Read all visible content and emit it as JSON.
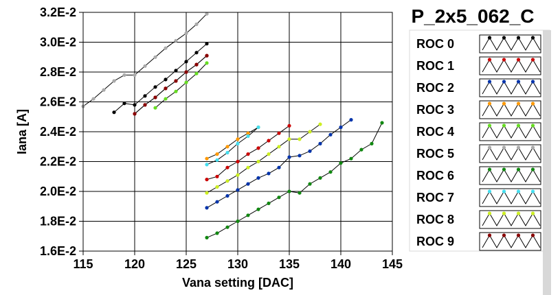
{
  "chart_data": {
    "type": "line",
    "title": "P_2x5_062_C",
    "xlabel": "Vana setting [DAC]",
    "ylabel": "Iana [A]",
    "xlim": [
      115,
      145
    ],
    "ylim": [
      0.016,
      0.032
    ],
    "xticks": [
      115,
      120,
      125,
      130,
      135,
      140,
      145
    ],
    "xtick_labels": [
      "115",
      "120",
      "125",
      "130",
      "135",
      "140",
      "145"
    ],
    "yticks": [
      0.016,
      0.018,
      0.02,
      0.022,
      0.024,
      0.026,
      0.028,
      0.03,
      0.032
    ],
    "ytick_labels": [
      "1.6E-2",
      "1.8E-2",
      "2.0E-2",
      "2.2E-2",
      "2.4E-2",
      "2.6E-2",
      "2.8E-2",
      "3.0E-2",
      "3.2E-2"
    ],
    "grid": true,
    "legend_position": "right",
    "series": [
      {
        "name": "ROC 0",
        "color": "#000000",
        "x": [
          118,
          119,
          120,
          121,
          122,
          123,
          124,
          125,
          126,
          127
        ],
        "y": [
          0.0253,
          0.0259,
          0.0258,
          0.0264,
          0.027,
          0.0275,
          0.0281,
          0.0287,
          0.0293,
          0.0299
        ]
      },
      {
        "name": "ROC 1",
        "color": "#cc0000",
        "x": [
          120,
          121,
          122,
          123,
          124,
          125,
          126,
          127
        ],
        "y": [
          0.0252,
          0.0258,
          0.0263,
          0.0269,
          0.0274,
          0.028,
          0.0285,
          0.0291
        ]
      },
      {
        "name": "ROC 1",
        "color": "#cc0000",
        "x": [
          127,
          128,
          129,
          130,
          131,
          132,
          133,
          134,
          135
        ],
        "y": [
          0.0208,
          0.021,
          0.0216,
          0.022,
          0.0225,
          0.0229,
          0.0234,
          0.0239,
          0.0244
        ]
      },
      {
        "name": "ROC 2",
        "color": "#0033aa",
        "x": [
          127,
          128,
          129,
          130,
          131,
          132,
          133,
          134,
          135,
          136,
          137,
          138,
          139,
          140,
          141
        ],
        "y": [
          0.0189,
          0.0193,
          0.0197,
          0.0201,
          0.0205,
          0.0209,
          0.0212,
          0.0216,
          0.0223,
          0.0224,
          0.0227,
          0.0232,
          0.0238,
          0.0243,
          0.0248
        ]
      },
      {
        "name": "ROC 3",
        "color": "#ff9900",
        "x": [
          127,
          128,
          129,
          130,
          131,
          132
        ],
        "y": [
          0.0222,
          0.0225,
          0.023,
          0.0235,
          0.0239,
          0.0243
        ]
      },
      {
        "name": "ROC 4",
        "color": "#66dd22",
        "x": [
          122,
          123,
          124,
          125,
          126,
          127
        ],
        "y": [
          0.0256,
          0.0262,
          0.0267,
          0.0273,
          0.0279,
          0.0286
        ]
      },
      {
        "name": "ROC 5",
        "color": "#aaaaaa",
        "x": [
          115,
          116,
          117,
          118,
          119,
          120,
          121,
          122,
          123,
          124,
          125,
          126,
          127
        ],
        "y": [
          0.0257,
          0.0262,
          0.0268,
          0.0274,
          0.0278,
          0.0278,
          0.0284,
          0.029,
          0.0296,
          0.0301,
          0.0306,
          0.0312,
          0.0319
        ]
      },
      {
        "name": "ROC 6",
        "color": "#118811",
        "x": [
          127,
          128,
          129,
          130,
          131,
          132,
          133,
          134,
          135,
          136,
          137,
          138,
          139,
          140,
          141,
          142,
          143,
          144
        ],
        "y": [
          0.0169,
          0.0172,
          0.0176,
          0.018,
          0.0184,
          0.0188,
          0.0192,
          0.0196,
          0.02,
          0.0199,
          0.0205,
          0.0209,
          0.0213,
          0.0219,
          0.0222,
          0.0228,
          0.0232,
          0.0246
        ]
      },
      {
        "name": "ROC 7",
        "color": "#44ddee",
        "x": [
          127,
          128,
          129,
          130,
          131,
          132
        ],
        "y": [
          0.0218,
          0.0221,
          0.0226,
          0.0232,
          0.0237,
          0.0243
        ]
      },
      {
        "name": "ROC 8",
        "color": "#ccee22",
        "x": [
          127,
          128,
          129,
          130,
          131,
          132,
          133,
          134,
          135,
          136,
          137,
          138
        ],
        "y": [
          0.0199,
          0.0203,
          0.0207,
          0.0211,
          0.0216,
          0.022,
          0.0225,
          0.023,
          0.0235,
          0.0235,
          0.024,
          0.0245
        ]
      },
      {
        "name": "ROC 9",
        "color": "#880000",
        "x": [
          120,
          121,
          122,
          123,
          124,
          125,
          126,
          127
        ],
        "y": [
          0.0252,
          0.0258,
          0.0263,
          0.0269,
          0.0274,
          0.028,
          0.0285,
          0.0291
        ]
      }
    ],
    "legend": [
      {
        "name": "ROC 0",
        "color": "#000000"
      },
      {
        "name": "ROC 1",
        "color": "#cc0000"
      },
      {
        "name": "ROC 2",
        "color": "#0033aa"
      },
      {
        "name": "ROC 3",
        "color": "#ff9900"
      },
      {
        "name": "ROC 4",
        "color": "#66dd22"
      },
      {
        "name": "ROC 5",
        "color": "#aaaaaa"
      },
      {
        "name": "ROC 6",
        "color": "#118811"
      },
      {
        "name": "ROC 7",
        "color": "#44ddee"
      },
      {
        "name": "ROC 8",
        "color": "#ccee22"
      },
      {
        "name": "ROC 9",
        "color": "#880000"
      }
    ]
  }
}
